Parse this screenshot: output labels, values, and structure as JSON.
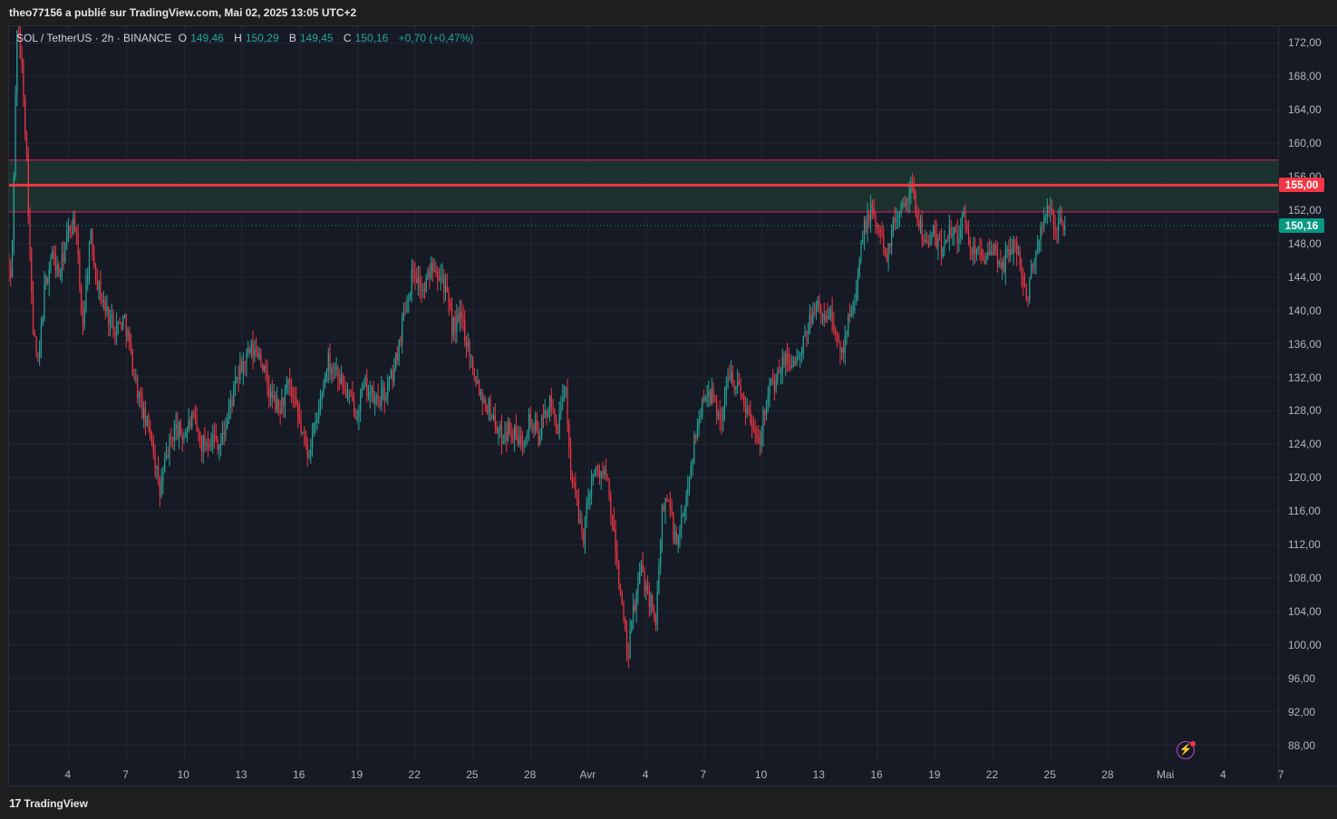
{
  "header": {
    "publish_line": "theo77156 a publié sur TradingView.com, Mai 02, 2025 13:05 UTC+2"
  },
  "legend": {
    "symbol": "SOL / TetherUS · 2h · BINANCE",
    "o_key": "O",
    "o_val": "149,46",
    "h_key": "H",
    "h_val": "150,29",
    "l_key": "B",
    "l_val": "149,45",
    "c_key": "C",
    "c_val": "150,16",
    "change": "+0,70 (+0,47%)"
  },
  "footer": {
    "brand": "TradingView",
    "brand_mark": "17"
  },
  "icons": {
    "flash": "lightning-icon"
  },
  "colors": {
    "up": "#26a69a",
    "down": "#f23645",
    "zone_fill": "#1d3a30",
    "zone_border": "#c2185b",
    "level": "#f23645",
    "last_price": "#089981"
  },
  "chart_data": {
    "type": "candlestick",
    "symbol": "SOL / TetherUS",
    "interval": "2h",
    "exchange": "BINANCE",
    "ylim": [
      86,
      174
    ],
    "yticks": [
      "88,00",
      "92,00",
      "96,00",
      "100,00",
      "104,00",
      "108,00",
      "112,00",
      "116,00",
      "120,00",
      "124,00",
      "128,00",
      "132,00",
      "136,00",
      "140,00",
      "144,00",
      "148,00",
      "152,00",
      "156,00",
      "160,00",
      "164,00",
      "168,00",
      "172,00"
    ],
    "xticks": [
      {
        "label": "4",
        "pos": 3
      },
      {
        "label": "7",
        "pos": 6
      },
      {
        "label": "10",
        "pos": 9
      },
      {
        "label": "13",
        "pos": 12
      },
      {
        "label": "16",
        "pos": 15
      },
      {
        "label": "19",
        "pos": 18
      },
      {
        "label": "22",
        "pos": 21
      },
      {
        "label": "25",
        "pos": 24
      },
      {
        "label": "28",
        "pos": 27
      },
      {
        "label": "Avr",
        "pos": 30
      },
      {
        "label": "4",
        "pos": 33
      },
      {
        "label": "7",
        "pos": 36
      },
      {
        "label": "10",
        "pos": 39
      },
      {
        "label": "13",
        "pos": 42
      },
      {
        "label": "16",
        "pos": 45
      },
      {
        "label": "19",
        "pos": 48
      },
      {
        "label": "22",
        "pos": 51
      },
      {
        "label": "25",
        "pos": 54
      },
      {
        "label": "28",
        "pos": 57
      },
      {
        "label": "Mai",
        "pos": 60
      },
      {
        "label": "4",
        "pos": 63
      },
      {
        "label": "7",
        "pos": 66
      }
    ],
    "time_range_days": [
      0.9,
      66.9
    ],
    "data_end_day": 62.5,
    "zone": {
      "low": 151.8,
      "high": 158.0
    },
    "level": {
      "value": 155.0,
      "label": "155,00"
    },
    "last_price": {
      "value": 150.16,
      "label": "150,16"
    },
    "waypoints": [
      [
        0.9,
        146
      ],
      [
        1.1,
        143
      ],
      [
        1.4,
        174
      ],
      [
        1.7,
        168
      ],
      [
        1.9,
        158
      ],
      [
        2.2,
        138
      ],
      [
        2.5,
        133
      ],
      [
        2.8,
        142
      ],
      [
        3.2,
        147
      ],
      [
        3.6,
        144
      ],
      [
        4.0,
        149
      ],
      [
        4.4,
        151
      ],
      [
        4.8,
        138
      ],
      [
        5.2,
        149
      ],
      [
        5.6,
        143
      ],
      [
        6.0,
        140
      ],
      [
        6.5,
        138
      ],
      [
        7.0,
        139
      ],
      [
        7.5,
        132
      ],
      [
        8.0,
        127
      ],
      [
        8.4,
        125
      ],
      [
        8.8,
        118
      ],
      [
        9.2,
        123
      ],
      [
        9.6,
        126
      ],
      [
        10.0,
        125
      ],
      [
        10.5,
        127
      ],
      [
        11.0,
        124
      ],
      [
        11.5,
        125
      ],
      [
        12.0,
        124
      ],
      [
        12.5,
        129
      ],
      [
        13.0,
        133
      ],
      [
        13.5,
        135
      ],
      [
        14.0,
        135
      ],
      [
        14.5,
        130
      ],
      [
        15.0,
        128
      ],
      [
        15.5,
        131
      ],
      [
        16.0,
        127
      ],
      [
        16.5,
        123
      ],
      [
        17.0,
        127
      ],
      [
        17.5,
        134
      ],
      [
        18.0,
        133
      ],
      [
        18.5,
        130
      ],
      [
        19.0,
        128
      ],
      [
        19.5,
        131
      ],
      [
        20.0,
        129
      ],
      [
        20.5,
        130
      ],
      [
        21.0,
        133
      ],
      [
        21.5,
        140
      ],
      [
        22.0,
        145
      ],
      [
        22.5,
        142
      ],
      [
        23.0,
        146
      ],
      [
        23.5,
        144
      ],
      [
        24.0,
        138
      ],
      [
        24.5,
        139
      ],
      [
        25.0,
        134
      ],
      [
        25.5,
        130
      ],
      [
        26.0,
        128
      ],
      [
        26.5,
        125
      ],
      [
        27.0,
        126
      ],
      [
        27.5,
        124
      ],
      [
        28.0,
        127
      ],
      [
        28.5,
        125
      ],
      [
        29.0,
        129
      ],
      [
        29.5,
        126
      ],
      [
        29.9,
        131
      ],
      [
        30.1,
        122
      ],
      [
        30.5,
        116
      ],
      [
        30.8,
        113
      ],
      [
        31.2,
        120
      ],
      [
        31.6,
        121
      ],
      [
        32.0,
        120
      ],
      [
        32.4,
        113
      ],
      [
        32.8,
        105
      ],
      [
        33.1,
        98
      ],
      [
        33.4,
        104
      ],
      [
        33.8,
        109
      ],
      [
        34.2,
        106
      ],
      [
        34.6,
        103
      ],
      [
        34.9,
        116
      ],
      [
        35.2,
        118
      ],
      [
        35.6,
        112
      ],
      [
        36.0,
        115
      ],
      [
        36.4,
        122
      ],
      [
        36.8,
        127
      ],
      [
        37.2,
        131
      ],
      [
        37.6,
        129
      ],
      [
        38.0,
        127
      ],
      [
        38.4,
        133
      ],
      [
        38.8,
        131
      ],
      [
        39.2,
        129
      ],
      [
        39.6,
        126
      ],
      [
        40.0,
        125
      ],
      [
        40.4,
        131
      ],
      [
        40.8,
        131
      ],
      [
        41.2,
        134
      ],
      [
        41.6,
        134
      ],
      [
        42.0,
        134
      ],
      [
        42.4,
        137
      ],
      [
        42.8,
        141
      ],
      [
        43.2,
        139
      ],
      [
        43.6,
        140
      ],
      [
        44.0,
        136
      ],
      [
        44.3,
        135
      ],
      [
        44.6,
        140
      ],
      [
        45.0,
        143
      ],
      [
        45.4,
        150
      ],
      [
        45.8,
        152
      ],
      [
        46.2,
        149
      ],
      [
        46.6,
        147
      ],
      [
        47.0,
        151
      ],
      [
        47.4,
        153
      ],
      [
        47.8,
        155
      ],
      [
        48.2,
        151
      ],
      [
        48.6,
        148
      ],
      [
        49.0,
        149
      ],
      [
        49.4,
        147
      ],
      [
        49.8,
        150
      ],
      [
        50.2,
        149
      ],
      [
        50.6,
        151
      ],
      [
        51.0,
        147
      ],
      [
        51.4,
        148
      ],
      [
        51.8,
        146
      ],
      [
        52.2,
        147
      ],
      [
        52.6,
        145
      ],
      [
        53.0,
        148
      ],
      [
        53.4,
        147
      ],
      [
        53.8,
        141
      ],
      [
        54.2,
        146
      ],
      [
        54.6,
        150
      ],
      [
        55.0,
        152
      ],
      [
        55.4,
        150
      ],
      [
        55.8,
        150.16
      ]
    ]
  }
}
